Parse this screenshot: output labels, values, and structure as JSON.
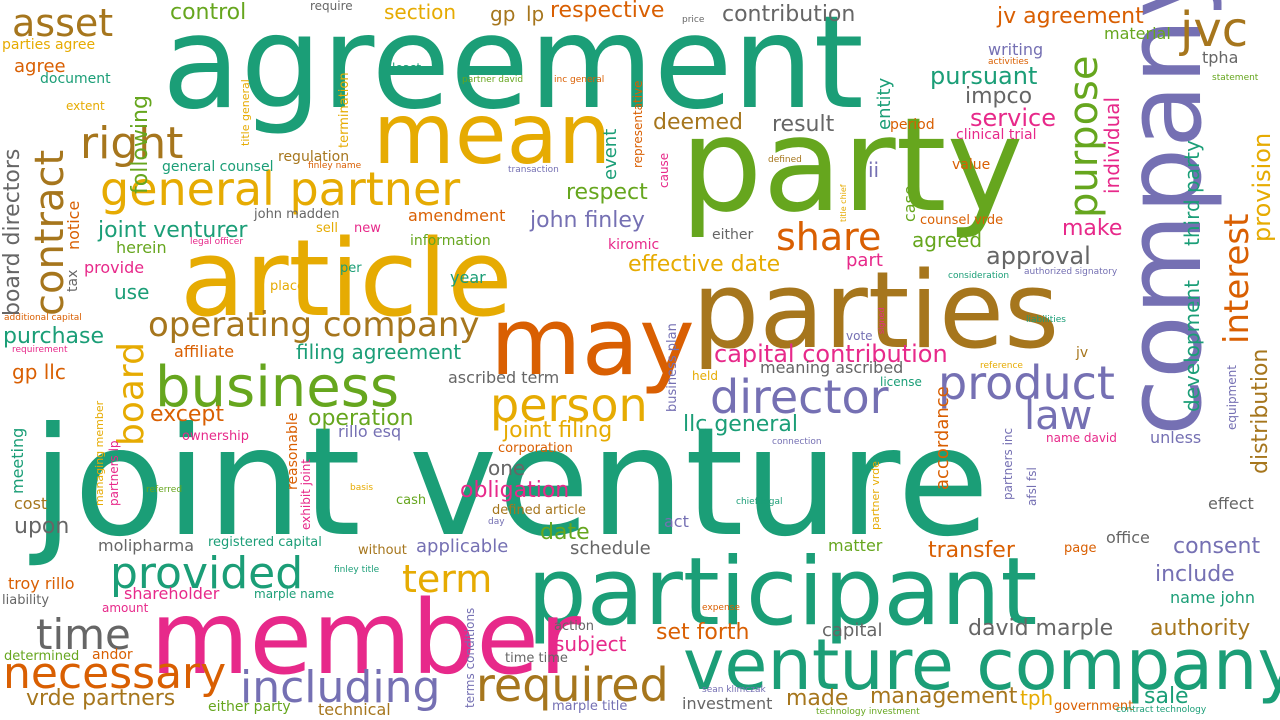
{
  "palette": {
    "teal": "#1b9e77",
    "orange": "#d95f02",
    "purple": "#7570b3",
    "magenta": "#e7298a",
    "green": "#66a61e",
    "gold": "#e6ab02",
    "brown": "#a6761d",
    "gray": "#666666"
  },
  "words": [
    {
      "text": "joint venture",
      "color": "teal"
    },
    {
      "text": "agreement",
      "color": "teal"
    },
    {
      "text": "party",
      "color": "green"
    },
    {
      "text": "company",
      "color": "purple"
    },
    {
      "text": "parties",
      "color": "brown"
    },
    {
      "text": "article",
      "color": "gold"
    },
    {
      "text": "participant",
      "color": "teal"
    },
    {
      "text": "member",
      "color": "magenta"
    },
    {
      "text": "may",
      "color": "orange"
    },
    {
      "text": "mean",
      "color": "gold"
    },
    {
      "text": "venture company",
      "color": "teal"
    },
    {
      "text": "business",
      "color": "green"
    },
    {
      "text": "director",
      "color": "purple"
    },
    {
      "text": "general partner",
      "color": "gold"
    },
    {
      "text": "product",
      "color": "purple"
    },
    {
      "text": "jvc",
      "color": "brown"
    },
    {
      "text": "person",
      "color": "gold"
    },
    {
      "text": "including",
      "color": "purple"
    },
    {
      "text": "required",
      "color": "brown"
    },
    {
      "text": "provided",
      "color": "teal"
    },
    {
      "text": "necessary",
      "color": "orange"
    },
    {
      "text": "time",
      "color": "gray"
    },
    {
      "text": "right",
      "color": "brown"
    },
    {
      "text": "law",
      "color": "purple"
    },
    {
      "text": "operating company",
      "color": "brown"
    },
    {
      "text": "contract",
      "color": "brown"
    },
    {
      "text": "purpose",
      "color": "green"
    },
    {
      "text": "asset",
      "color": "brown"
    },
    {
      "text": "board",
      "color": "gold"
    },
    {
      "text": "interest",
      "color": "orange"
    },
    {
      "text": "share",
      "color": "orange"
    },
    {
      "text": "term",
      "color": "gold"
    },
    {
      "text": "capital contribution",
      "color": "magenta"
    },
    {
      "text": "provision",
      "color": "gold"
    },
    {
      "text": "pursuant",
      "color": "teal"
    },
    {
      "text": "service",
      "color": "magenta"
    },
    {
      "text": "effective date",
      "color": "gold"
    },
    {
      "text": "approval",
      "color": "gray"
    },
    {
      "text": "joint filing",
      "color": "gold"
    },
    {
      "text": "llc general",
      "color": "teal"
    },
    {
      "text": "distribution",
      "color": "brown"
    },
    {
      "text": "david marple",
      "color": "gray"
    },
    {
      "text": "authority",
      "color": "brown"
    },
    {
      "text": "transfer",
      "color": "orange"
    },
    {
      "text": "consent",
      "color": "purple"
    },
    {
      "text": "include",
      "color": "purple"
    },
    {
      "text": "obligation",
      "color": "magenta"
    },
    {
      "text": "vrde partners",
      "color": "brown"
    },
    {
      "text": "made",
      "color": "brown"
    },
    {
      "text": "management",
      "color": "brown"
    },
    {
      "text": "sale",
      "color": "teal"
    },
    {
      "text": "jv agreement",
      "color": "orange"
    },
    {
      "text": "john finley",
      "color": "purple"
    },
    {
      "text": "joint venturer",
      "color": "teal"
    },
    {
      "text": "following",
      "color": "green"
    },
    {
      "text": "board directors",
      "color": "gray"
    },
    {
      "text": "purchase",
      "color": "teal"
    },
    {
      "text": "impco",
      "color": "gray"
    },
    {
      "text": "result",
      "color": "gray"
    },
    {
      "text": "deemed",
      "color": "brown"
    },
    {
      "text": "respect",
      "color": "green"
    },
    {
      "text": "contribution",
      "color": "gray"
    },
    {
      "text": "respective",
      "color": "orange"
    },
    {
      "text": "section",
      "color": "gold"
    },
    {
      "text": "gp",
      "color": "brown"
    },
    {
      "text": "lp",
      "color": "brown"
    },
    {
      "text": "control",
      "color": "green"
    },
    {
      "text": "make",
      "color": "magenta"
    },
    {
      "text": "agreed",
      "color": "green"
    },
    {
      "text": "development",
      "color": "teal"
    },
    {
      "text": "third party",
      "color": "teal"
    },
    {
      "text": "individual",
      "color": "magenta"
    },
    {
      "text": "entity",
      "color": "teal"
    },
    {
      "text": "event",
      "color": "teal"
    },
    {
      "text": "operation",
      "color": "green"
    },
    {
      "text": "filing agreement",
      "color": "teal"
    },
    {
      "text": "except",
      "color": "orange"
    },
    {
      "text": "date",
      "color": "green"
    },
    {
      "text": "set forth",
      "color": "orange"
    },
    {
      "text": "subject",
      "color": "magenta"
    },
    {
      "text": "capital",
      "color": "gray"
    },
    {
      "text": "one",
      "color": "gray"
    },
    {
      "text": "ii",
      "color": "purple"
    },
    {
      "text": "case",
      "color": "green"
    },
    {
      "text": "part",
      "color": "magenta"
    },
    {
      "text": "accordance",
      "color": "orange"
    },
    {
      "text": "unless",
      "color": "purple"
    },
    {
      "text": "meaning ascribed",
      "color": "gray"
    },
    {
      "text": "writing",
      "color": "purple"
    },
    {
      "text": "material",
      "color": "green"
    },
    {
      "text": "tpha",
      "color": "gray"
    },
    {
      "text": "amendment",
      "color": "orange"
    },
    {
      "text": "information",
      "color": "green"
    },
    {
      "text": "kiromic",
      "color": "magenta"
    },
    {
      "text": "either",
      "color": "gray"
    },
    {
      "text": "counsel vrde",
      "color": "orange"
    },
    {
      "text": "value",
      "color": "orange"
    },
    {
      "text": "period",
      "color": "orange"
    },
    {
      "text": "clinical trial",
      "color": "magenta"
    },
    {
      "text": "regulation",
      "color": "brown"
    },
    {
      "text": "general counsel",
      "color": "teal"
    },
    {
      "text": "john madden",
      "color": "gray"
    },
    {
      "text": "sell",
      "color": "gold"
    },
    {
      "text": "new",
      "color": "magenta"
    },
    {
      "text": "herein",
      "color": "green"
    },
    {
      "text": "provide",
      "color": "magenta"
    },
    {
      "text": "use",
      "color": "teal"
    },
    {
      "text": "place",
      "color": "gold"
    },
    {
      "text": "per",
      "color": "teal"
    },
    {
      "text": "year",
      "color": "teal"
    },
    {
      "text": "affiliate",
      "color": "orange"
    },
    {
      "text": "ascribed term",
      "color": "gray"
    },
    {
      "text": "notice",
      "color": "orange"
    },
    {
      "text": "tax",
      "color": "gray"
    },
    {
      "text": "gp llc",
      "color": "orange"
    },
    {
      "text": "meeting",
      "color": "teal"
    },
    {
      "text": "ownership",
      "color": "magenta"
    },
    {
      "text": "rillo esq",
      "color": "purple"
    },
    {
      "text": "corporation",
      "color": "orange"
    },
    {
      "text": "cost",
      "color": "brown"
    },
    {
      "text": "upon",
      "color": "gray"
    },
    {
      "text": "molipharma",
      "color": "gray"
    },
    {
      "text": "registered capital",
      "color": "teal"
    },
    {
      "text": "applicable",
      "color": "purple"
    },
    {
      "text": "schedule",
      "color": "gray"
    },
    {
      "text": "without",
      "color": "brown"
    },
    {
      "text": "cash",
      "color": "green"
    },
    {
      "text": "defined article",
      "color": "brown"
    },
    {
      "text": "act",
      "color": "purple"
    },
    {
      "text": "matter",
      "color": "green"
    },
    {
      "text": "page",
      "color": "orange"
    },
    {
      "text": "office",
      "color": "gray"
    },
    {
      "text": "effect",
      "color": "gray"
    },
    {
      "text": "troy rillo",
      "color": "orange"
    },
    {
      "text": "liability",
      "color": "gray"
    },
    {
      "text": "shareholder",
      "color": "magenta"
    },
    {
      "text": "marple name",
      "color": "teal"
    },
    {
      "text": "amount",
      "color": "magenta"
    },
    {
      "text": "action",
      "color": "gray"
    },
    {
      "text": "determined",
      "color": "green"
    },
    {
      "text": "andor",
      "color": "orange"
    },
    {
      "text": "time time",
      "color": "gray"
    },
    {
      "text": "either party",
      "color": "green"
    },
    {
      "text": "technical",
      "color": "brown"
    },
    {
      "text": "marple title",
      "color": "purple"
    },
    {
      "text": "investment",
      "color": "gray"
    },
    {
      "text": "tph",
      "color": "gold"
    },
    {
      "text": "government",
      "color": "orange"
    },
    {
      "text": "name john",
      "color": "teal"
    },
    {
      "text": "held",
      "color": "gold"
    },
    {
      "text": "license",
      "color": "teal"
    },
    {
      "text": "vote",
      "color": "purple"
    },
    {
      "text": "jv",
      "color": "brown"
    },
    {
      "text": "name david",
      "color": "magenta"
    },
    {
      "text": "parties agree",
      "color": "gold"
    },
    {
      "text": "agree",
      "color": "orange"
    },
    {
      "text": "document",
      "color": "teal"
    },
    {
      "text": "extent",
      "color": "gold"
    },
    {
      "text": "require",
      "color": "gray"
    },
    {
      "text": "least",
      "color": "teal"
    },
    {
      "text": "termination",
      "color": "gold"
    },
    {
      "text": "title general",
      "color": "gold"
    },
    {
      "text": "representative",
      "color": "orange"
    },
    {
      "text": "cause",
      "color": "magenta"
    },
    {
      "text": "business plan",
      "color": "purple"
    },
    {
      "text": "reasonable",
      "color": "orange"
    },
    {
      "text": "exhibit joint",
      "color": "magenta"
    },
    {
      "text": "managing member",
      "color": "gold"
    },
    {
      "text": "partners lp",
      "color": "magenta"
    },
    {
      "text": "terms conditions",
      "color": "purple"
    },
    {
      "text": "partner vrde",
      "color": "gold"
    },
    {
      "text": "partners inc",
      "color": "purple"
    },
    {
      "text": "afsl fsl",
      "color": "purple"
    },
    {
      "text": "equipment",
      "color": "purple"
    },
    {
      "text": "price",
      "color": "gray"
    },
    {
      "text": "partner david",
      "color": "green"
    },
    {
      "text": "inc general",
      "color": "orange"
    },
    {
      "text": "activities",
      "color": "orange"
    },
    {
      "text": "statement",
      "color": "green"
    },
    {
      "text": "finley name",
      "color": "orange"
    },
    {
      "text": "transaction",
      "color": "purple"
    },
    {
      "text": "defined",
      "color": "brown"
    },
    {
      "text": "title chief",
      "color": "gold"
    },
    {
      "text": "legal officer",
      "color": "magenta"
    },
    {
      "text": "consideration",
      "color": "teal"
    },
    {
      "text": "authorized signatory",
      "color": "purple"
    },
    {
      "text": "additional capital",
      "color": "orange"
    },
    {
      "text": "requirement",
      "color": "magenta"
    },
    {
      "text": "liabilities",
      "color": "teal"
    },
    {
      "text": "signed",
      "color": "magenta"
    },
    {
      "text": "reference",
      "color": "gold"
    },
    {
      "text": "connection",
      "color": "purple"
    },
    {
      "text": "referred",
      "color": "green"
    },
    {
      "text": "basis",
      "color": "gold"
    },
    {
      "text": "chief legal",
      "color": "teal"
    },
    {
      "text": "day",
      "color": "purple"
    },
    {
      "text": "finley title",
      "color": "teal"
    },
    {
      "text": "expense",
      "color": "orange"
    },
    {
      "text": "sean klimczak",
      "color": "purple"
    },
    {
      "text": "technology investment",
      "color": "green"
    },
    {
      "text": "contract technology",
      "color": "teal"
    }
  ]
}
